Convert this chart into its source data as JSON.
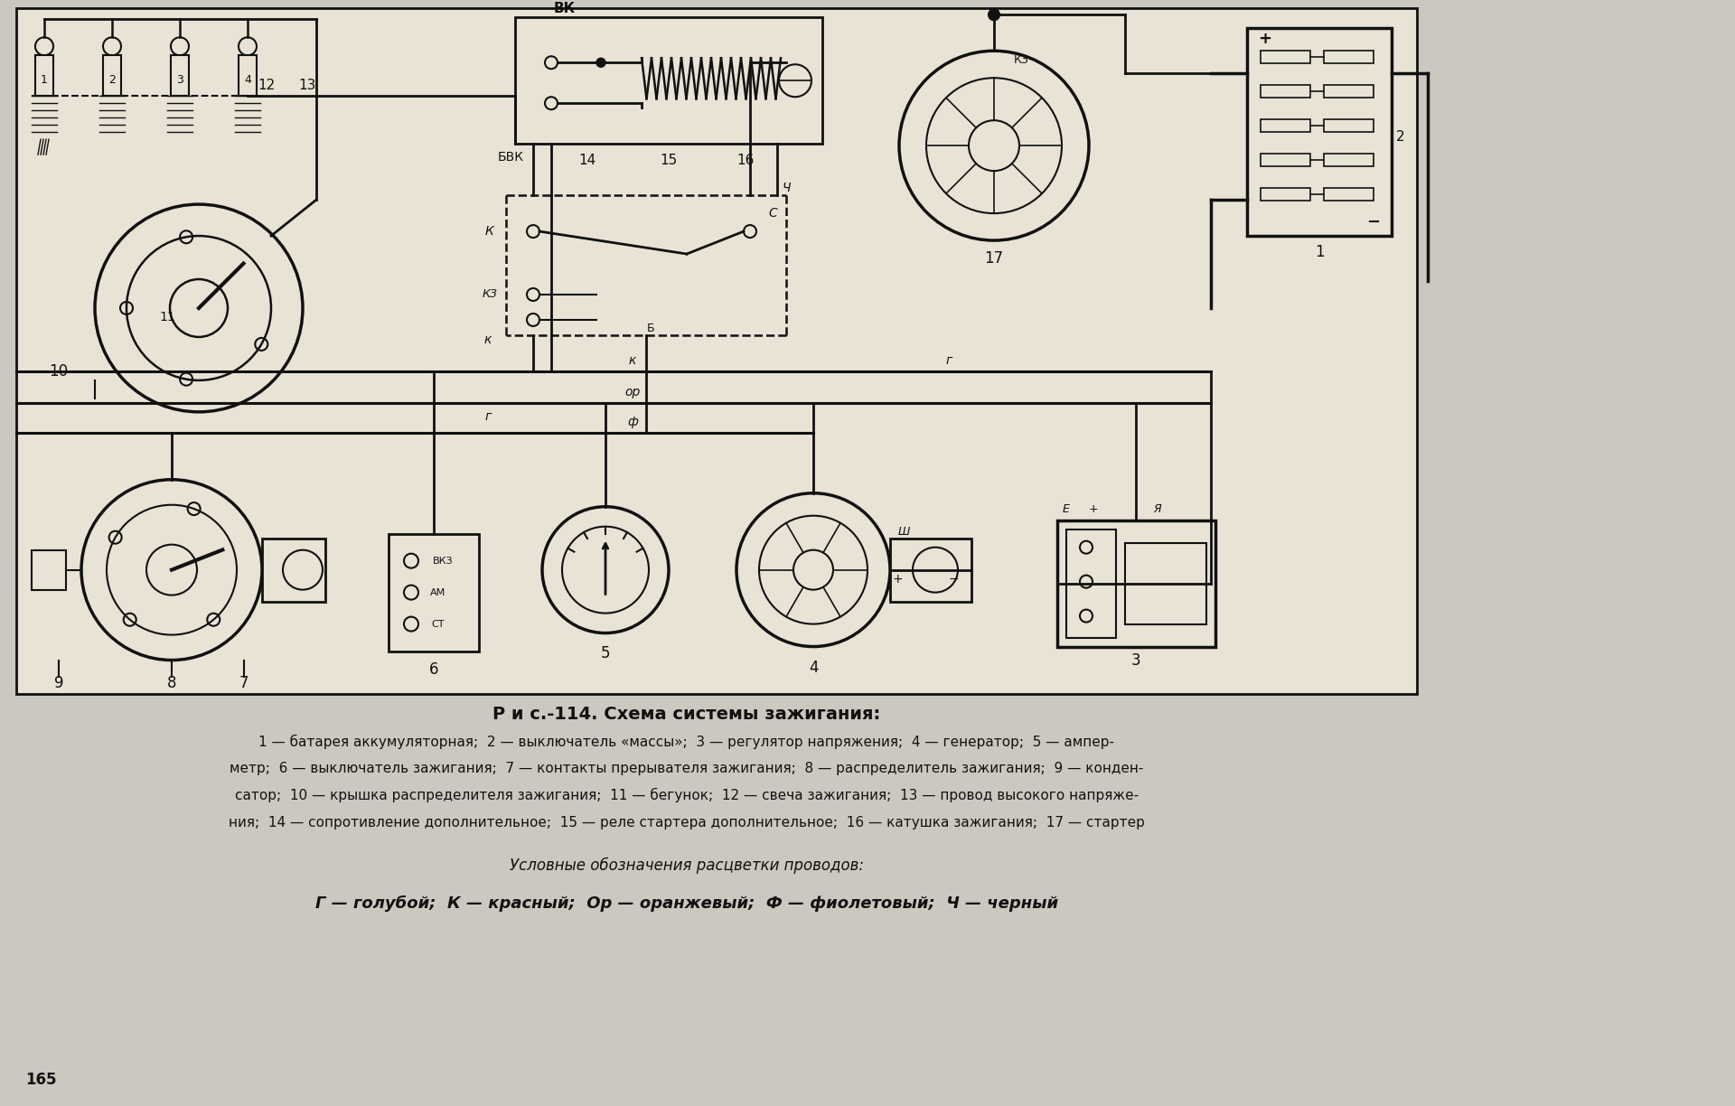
{
  "title": "Р и с.-114. Схема системы зажигания:",
  "bg_color": "#ccc8c0",
  "caption_line1": "1 — батарея аккумуляторная;  2 — выключатель «массы»;  3 — регулятор напряжения;  4 — генератор;  5 — ампер-",
  "caption_line2": "метр;  6 — выключатель зажигания;  7 — контакты прерывателя зажигания;  8 — распределитель зажигания;  9 — конден-",
  "caption_line3": "сатор;  10 — крышка распределителя зажигания;  11 — бегунок;  12 — свеча зажигания;  13 — провод высокого напряже-",
  "caption_line4": "ния;  14 — сопротивление дополнительное;  15 — реле стартера дополнительное;  16 — катушка зажигания;  17 — стартер",
  "legend_title": "Условные обозначения расцветки проводов:",
  "legend_line": "Г — голубой;  К — красный;  Ор — оранжевый;  Ф — фиолетовый;  Ч — черный",
  "page_number": "165",
  "line_color": "#111111",
  "text_color": "#111111",
  "diagram_bg": "#e8e3d5"
}
